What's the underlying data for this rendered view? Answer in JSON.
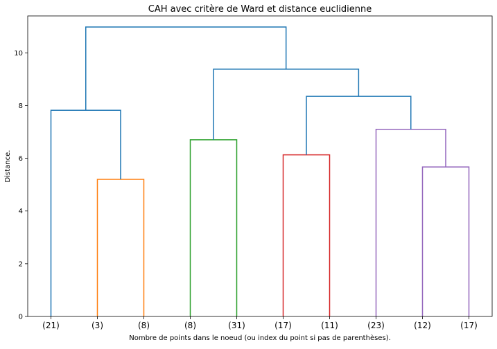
{
  "chart_data": {
    "type": "dendrogram",
    "title": "CAH avec critère de Ward et distance euclidienne",
    "xlabel": "Nombre de points dans le noeud (ou index du point si pas de parenthèses).",
    "ylabel": "Distance.",
    "ylim": [
      0,
      11.4
    ],
    "yticks": [
      {
        "value": 0,
        "label": "0"
      },
      {
        "value": 2,
        "label": "2"
      },
      {
        "value": 4,
        "label": "4"
      },
      {
        "value": 6,
        "label": "6"
      },
      {
        "value": 8,
        "label": "8"
      },
      {
        "value": 10,
        "label": "10"
      }
    ],
    "grid": false,
    "leaves": [
      "(21)",
      "(3)",
      "(8)",
      "(8)",
      "(31)",
      "(17)",
      "(11)",
      "(23)",
      "(12)",
      "(17)"
    ],
    "colors": {
      "above_threshold": "#1f77b4",
      "orange": "#ff7f0e",
      "green": "#2ca02c",
      "red": "#d62728",
      "purple": "#9467bd"
    },
    "merges": [
      {
        "id": "orange_merge",
        "left": "leaf1",
        "right": "leaf2",
        "height": 5.2,
        "color": "orange"
      },
      {
        "id": "green_merge",
        "left": "leaf3",
        "right": "leaf4",
        "height": 6.7,
        "color": "green"
      },
      {
        "id": "red_merge",
        "left": "leaf5",
        "right": "leaf6",
        "height": 6.13,
        "color": "red"
      },
      {
        "id": "purple_inner",
        "left": "leaf8",
        "right": "leaf9",
        "height": 5.67,
        "color": "purple"
      },
      {
        "id": "purple_outer",
        "left": "leaf7",
        "right": "purple_inner",
        "height": 7.1,
        "color": "purple"
      },
      {
        "id": "left_group",
        "left": "leaf0",
        "right": "orange_merge",
        "height": 7.82,
        "color": "above_threshold"
      },
      {
        "id": "right_inner",
        "left": "red_merge",
        "right": "purple_outer",
        "height": 8.35,
        "color": "above_threshold"
      },
      {
        "id": "right_group",
        "left": "green_merge",
        "right": "right_inner",
        "height": 9.38,
        "color": "above_threshold"
      },
      {
        "id": "root",
        "left": "left_group",
        "right": "right_group",
        "height": 10.98,
        "color": "above_threshold"
      }
    ]
  }
}
